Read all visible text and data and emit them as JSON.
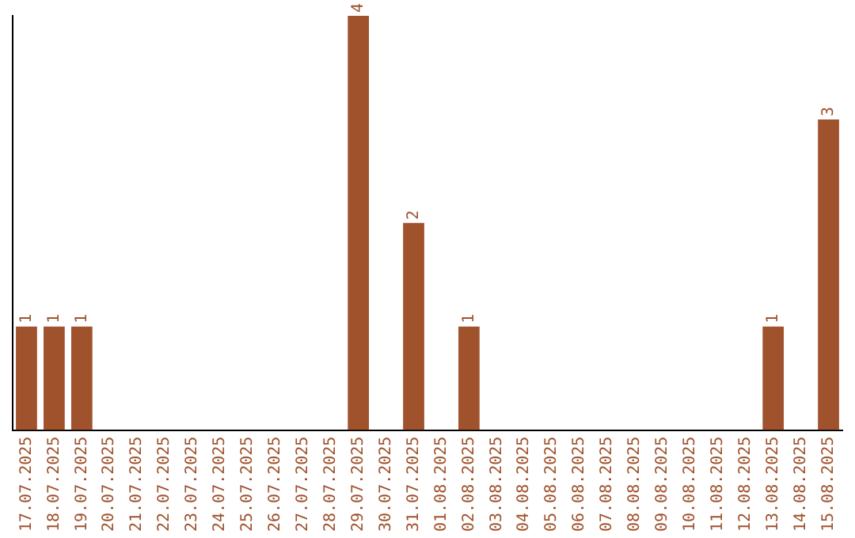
{
  "chart_data": {
    "type": "bar",
    "categories": [
      "17.07.2025",
      "18.07.2025",
      "19.07.2025",
      "20.07.2025",
      "21.07.2025",
      "22.07.2025",
      "23.07.2025",
      "24.07.2025",
      "25.07.2025",
      "26.07.2025",
      "27.07.2025",
      "28.07.2025",
      "29.07.2025",
      "30.07.2025",
      "31.07.2025",
      "01.08.2025",
      "02.08.2025",
      "03.08.2025",
      "04.08.2025",
      "05.08.2025",
      "06.08.2025",
      "07.08.2025",
      "08.08.2025",
      "09.08.2025",
      "10.08.2025",
      "11.08.2025",
      "12.08.2025",
      "13.08.2025",
      "14.08.2025",
      "15.08.2025"
    ],
    "values": [
      1,
      1,
      1,
      0,
      0,
      0,
      0,
      0,
      0,
      0,
      0,
      0,
      4,
      0,
      2,
      0,
      1,
      0,
      0,
      0,
      0,
      0,
      0,
      0,
      0,
      0,
      0,
      1,
      0,
      3
    ],
    "value_labels": [
      "1",
      "1",
      "1",
      null,
      null,
      null,
      null,
      null,
      null,
      null,
      null,
      null,
      "4",
      null,
      "2",
      null,
      "1",
      null,
      null,
      null,
      null,
      null,
      null,
      null,
      null,
      null,
      null,
      "1",
      null,
      "3"
    ],
    "color": "#a0522d",
    "grid": false,
    "legend": false,
    "tick_labels": "x"
  }
}
